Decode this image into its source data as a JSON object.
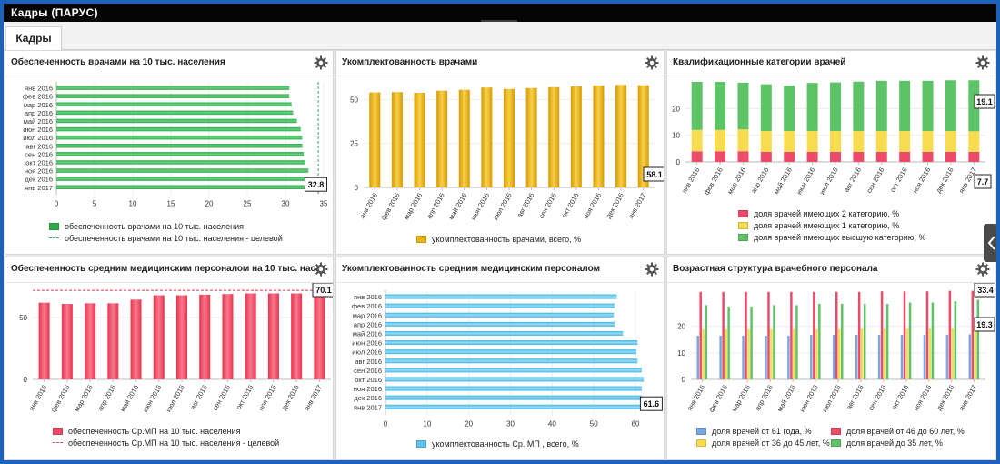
{
  "window": {
    "title": "Кадры (ПАРУС)"
  },
  "tabs": [
    {
      "label": "Кадры"
    }
  ],
  "colors": {
    "green": "#2eac4c",
    "gold": "#e8b418",
    "red": "#eb4a66",
    "lightblue": "#5cc3ec",
    "cat_red": "#ee4a6a",
    "cat_yellow": "#f7dc50",
    "cat_green": "#5cc366",
    "blue": "#7aa7e0"
  },
  "icons": {
    "gear": "gear-icon",
    "collapse": "chevron-down-icon",
    "side": "chevron-left-icon"
  },
  "panels": [
    {
      "title": "Обеспеченность врачами на 10 тыс. населения",
      "legend": [
        "обеспеченность врачами на 10 тыс. населения",
        "обеспеченность врачами на 10 тыс. населения - целевой"
      ]
    },
    {
      "title": "Укомплектованность врачами",
      "legend": [
        "укомплектованность врачами, всего, %"
      ]
    },
    {
      "title": "Квалификационные категории врачей",
      "legend": [
        "доля врачей имеющих 2 категорию, %",
        "доля врачей имеющих 1 категорию, %",
        "доля врачей имеющих высшую категорию, %"
      ]
    },
    {
      "title": "Обеспеченность средним медицинским персоналом на 10 тыс. нас...",
      "legend": [
        "обеспеченность Ср.МП на 10 тыс. населения",
        "обеспеченность Ср.МП на 10 тыс. населения - целевой"
      ]
    },
    {
      "title": "Укомплектованность средним медицинским персоналом",
      "legend": [
        "укомплектованность Ср. МП , всего, %"
      ]
    },
    {
      "title": "Возрастная структура врачебного персонала",
      "legend": [
        "доля врачей от 61 года, %",
        "доля врачей от 46 до 60 лет, %",
        "доля врачей от 36 до 45 лет, %",
        "доля врачей до 35 лет, %"
      ]
    }
  ],
  "chart_data": [
    {
      "type": "bar",
      "orientation": "horizontal",
      "categories": [
        "янв 2016",
        "фев 2016",
        "мар 2016",
        "апр 2016",
        "май 2016",
        "июн 2016",
        "июл 2016",
        "авг 2016",
        "сен 2016",
        "окт 2016",
        "ноя 2016",
        "дек 2016",
        "янв 2017"
      ],
      "series": [
        {
          "name": "обеспеченность врачами на 10 тыс. населения",
          "values": [
            30.5,
            30.5,
            30.8,
            31.0,
            31.5,
            32.0,
            32.2,
            32.2,
            32.4,
            32.6,
            33.0,
            33.0,
            32.8
          ]
        },
        {
          "name": "обеспеченность врачами на 10 тыс. населения - целевой",
          "values": [
            34.3,
            34.3,
            34.3,
            34.3,
            34.3,
            34.3,
            34.3,
            34.3,
            34.3,
            34.3,
            34.3,
            34.3,
            34.3
          ]
        }
      ],
      "xlim": [
        0,
        35
      ],
      "ticks": [
        0,
        5,
        10,
        15,
        20,
        25,
        30,
        35
      ],
      "tooltip": "32.8"
    },
    {
      "type": "bar",
      "categories": [
        "янв 2016",
        "фев 2016",
        "мар 2016",
        "апр 2016",
        "май 2016",
        "июн 2016",
        "июл 2016",
        "авг 2016",
        "сен 2016",
        "окт 2016",
        "ноя 2016",
        "дек 2016",
        "янв 2017"
      ],
      "series": [
        {
          "name": "укомплектованность врачами, всего, %",
          "values": [
            54.0,
            54.2,
            53.8,
            55.0,
            55.5,
            56.8,
            56.0,
            56.5,
            57.0,
            57.5,
            58.0,
            58.3,
            58.1
          ]
        }
      ],
      "ylim": [
        0,
        60
      ],
      "ticks": [
        0,
        25,
        50
      ],
      "tooltip": "58.1"
    },
    {
      "type": "bar",
      "stacked": true,
      "categories": [
        "янв 2016",
        "фев 2016",
        "мар 2016",
        "апр 2016",
        "май 2016",
        "июн 2016",
        "июл 2016",
        "авг 2016",
        "сен 2016",
        "окт 2016",
        "ноя 2016",
        "дек 2016",
        "янв 2017"
      ],
      "series": [
        {
          "name": "доля врачей имеющих 2 категорию, %",
          "values": [
            4.0,
            4.0,
            4.0,
            3.8,
            3.8,
            3.8,
            3.8,
            3.8,
            3.8,
            3.8,
            3.8,
            3.8,
            3.8
          ]
        },
        {
          "name": "доля врачей имеющих 1 категорию, %",
          "values": [
            8.0,
            8.0,
            8.2,
            7.8,
            7.8,
            7.8,
            7.8,
            7.8,
            7.8,
            7.8,
            7.8,
            7.8,
            7.7
          ]
        },
        {
          "name": "доля врачей имеющих высшую категорию, %",
          "values": [
            18.0,
            18.0,
            17.5,
            17.5,
            17.0,
            18.0,
            18.2,
            18.5,
            18.8,
            18.8,
            18.8,
            19.0,
            19.1
          ]
        }
      ],
      "ylim": [
        0,
        30
      ],
      "ticks": [
        0,
        10,
        20
      ],
      "tooltips": [
        "19.1",
        "7.7"
      ]
    },
    {
      "type": "bar",
      "categories": [
        "янв 2016",
        "фев 2016",
        "мар 2016",
        "апр 2016",
        "май 2016",
        "июн 2016",
        "июл 2016",
        "авг 2016",
        "сен 2016",
        "окт 2016",
        "ноя 2016",
        "дек 2016",
        "янв 2017"
      ],
      "series": [
        {
          "name": "обеспеченность Ср.МП на 10 тыс. населения",
          "values": [
            62.0,
            61.0,
            61.5,
            61.5,
            64.5,
            68.0,
            68.0,
            68.5,
            69.0,
            69.5,
            69.5,
            69.5,
            70.1
          ]
        },
        {
          "name": "обеспеченность Ср.МП на 10 тыс. населения - целевой",
          "values": [
            72.0,
            72.0,
            72.0,
            72.0,
            72.0,
            72.0,
            72.0,
            72.0,
            72.0,
            72.0,
            72.0,
            72.0,
            72.0
          ]
        }
      ],
      "ylim": [
        0,
        75
      ],
      "ticks": [
        0,
        50
      ],
      "tooltip": "70.1"
    },
    {
      "type": "bar",
      "orientation": "horizontal",
      "categories": [
        "янв 2016",
        "фев 2016",
        "мар 2016",
        "апр 2016",
        "май 2016",
        "июн 2016",
        "июл 2016",
        "авг 2016",
        "сен 2016",
        "окт 2016",
        "ноя 2016",
        "дек 2016",
        "янв 2017"
      ],
      "series": [
        {
          "name": "укомплектованность Ср. МП , всего, %",
          "values": [
            55.5,
            55.0,
            54.8,
            55.0,
            57.0,
            60.5,
            60.2,
            60.5,
            61.5,
            62.0,
            61.5,
            61.5,
            61.6
          ]
        }
      ],
      "xlim": [
        0,
        65
      ],
      "ticks": [
        0,
        10,
        20,
        30,
        40,
        50,
        60
      ],
      "tooltip": "61.6"
    },
    {
      "type": "bar",
      "grouped": true,
      "categories": [
        "янв 2016",
        "фев 2016",
        "мар 2016",
        "апр 2016",
        "май 2016",
        "июн 2016",
        "июл 2016",
        "авг 2016",
        "сен 2016",
        "окт 2016",
        "ноя 2016",
        "дек 2016",
        "янв 2017"
      ],
      "series": [
        {
          "name": "доля врачей от 61 года, %",
          "values": [
            16.5,
            16.5,
            16.5,
            16.5,
            16.5,
            16.8,
            16.8,
            16.8,
            16.8,
            16.8,
            16.8,
            16.8,
            17.0
          ]
        },
        {
          "name": "доля врачей от 46 до 60 лет, %",
          "values": [
            33.0,
            33.0,
            33.0,
            33.0,
            33.0,
            33.0,
            33.0,
            33.0,
            33.2,
            33.2,
            33.2,
            33.4,
            33.4
          ]
        },
        {
          "name": "доля врачей от 36 до 45 лет, %",
          "values": [
            19.0,
            19.0,
            19.0,
            19.0,
            19.0,
            19.0,
            19.0,
            19.2,
            19.2,
            19.2,
            19.2,
            19.3,
            19.3
          ]
        },
        {
          "name": "доля врачей до 35 лет, %",
          "values": [
            28.0,
            27.5,
            27.5,
            28.0,
            28.0,
            28.5,
            28.5,
            28.5,
            28.5,
            29.0,
            29.0,
            29.5,
            30.0
          ]
        }
      ],
      "ylim": [
        0,
        35
      ],
      "ticks": [
        0,
        10,
        20
      ],
      "tooltips": [
        "33.4",
        "19.3"
      ]
    }
  ]
}
